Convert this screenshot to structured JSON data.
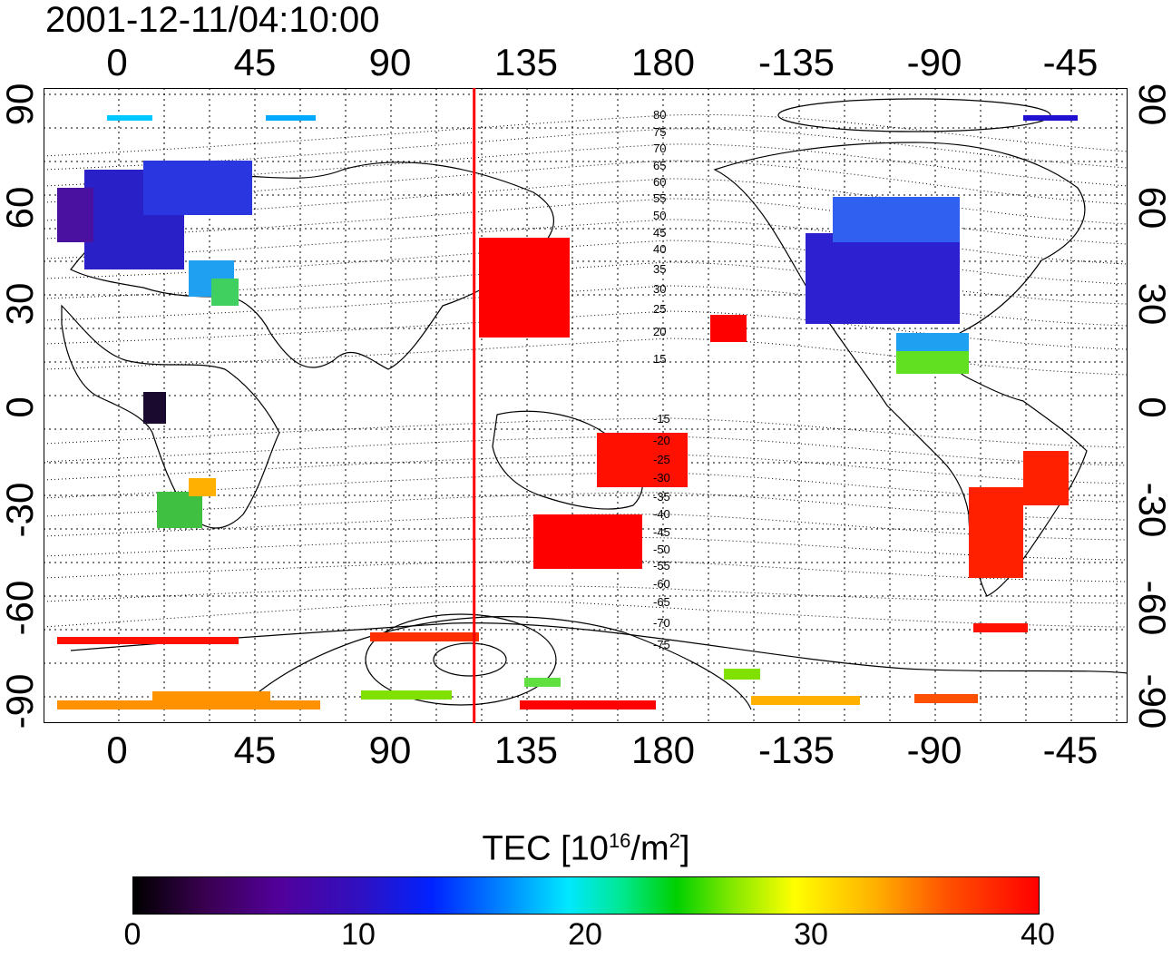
{
  "title": "2001-12-11/04:10:00",
  "lon_ticks": [
    "0",
    "45",
    "90",
    "135",
    "180",
    "-135",
    "-90",
    "-45"
  ],
  "lat_ticks": [
    "90",
    "60",
    "30",
    "0",
    "-30",
    "-60",
    "-90"
  ],
  "contour_labels": [
    "80",
    "75",
    "70",
    "65",
    "60",
    "55",
    "50",
    "45",
    "40",
    "35",
    "30",
    "25",
    "20",
    "15",
    "-15",
    "-20",
    "-25",
    "-30",
    "-35",
    "-40",
    "-45",
    "-50",
    "-55",
    "-60",
    "-65",
    "-70",
    "-75"
  ],
  "colorbar": {
    "title_prefix": "TEC  [10",
    "title_sup1": "16",
    "title_mid": "/m",
    "title_sup2": "2",
    "title_suffix": "]",
    "ticks": [
      "0",
      "10",
      "20",
      "30",
      "40"
    ],
    "range": [
      0,
      40
    ],
    "colors": [
      "#000000",
      "#52009a",
      "#0022ff",
      "#00e8ff",
      "#00d000",
      "#ffff00",
      "#ff5000",
      "#ff0000"
    ]
  },
  "map": {
    "projection": "equirectangular",
    "lon_range": [
      -25,
      335
    ],
    "lat_range": [
      -95,
      95
    ],
    "marker_longitude": 118,
    "marker_color": "#ff0000"
  }
}
